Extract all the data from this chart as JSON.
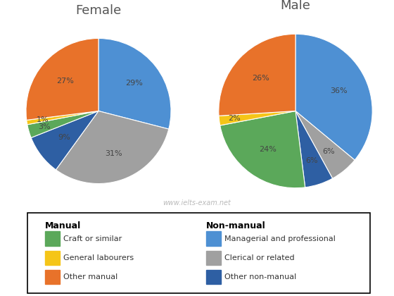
{
  "female_title": "Female",
  "male_title": "Male",
  "categories": [
    "Managerial and professional",
    "Clerical or related",
    "Other non-manual",
    "Craft or similar",
    "General labourers",
    "Other manual"
  ],
  "colors": {
    "Craft or similar": "#5BA85A",
    "General labourers": "#F5C518",
    "Other manual": "#E8722A",
    "Other non-manual": "#2E5FA3",
    "Clerical or related": "#A0A0A0",
    "Managerial and professional": "#4E90D3"
  },
  "female_values": [
    29,
    31,
    9,
    3,
    1,
    27
  ],
  "male_values": [
    36,
    6,
    6,
    24,
    2,
    26
  ],
  "female_labels": [
    "29%",
    "31%",
    "9%",
    "3%",
    "1%",
    "27%"
  ],
  "male_labels": [
    "36%",
    "6%",
    "6%",
    "24%",
    "2%",
    "26%"
  ],
  "female_label_radii": [
    0.62,
    0.62,
    0.6,
    0.78,
    0.78,
    0.62
  ],
  "male_label_radii": [
    0.62,
    0.68,
    0.68,
    0.62,
    0.8,
    0.62
  ],
  "watermark": "www.ielts-exam.net",
  "legend_manual_title": "Manual",
  "legend_nonmanual_title": "Non-manual",
  "legend_manual": [
    "Craft or similar",
    "General labourers",
    "Other manual"
  ],
  "legend_nonmanual": [
    "Managerial and professional",
    "Clerical or related",
    "Other non-manual"
  ]
}
